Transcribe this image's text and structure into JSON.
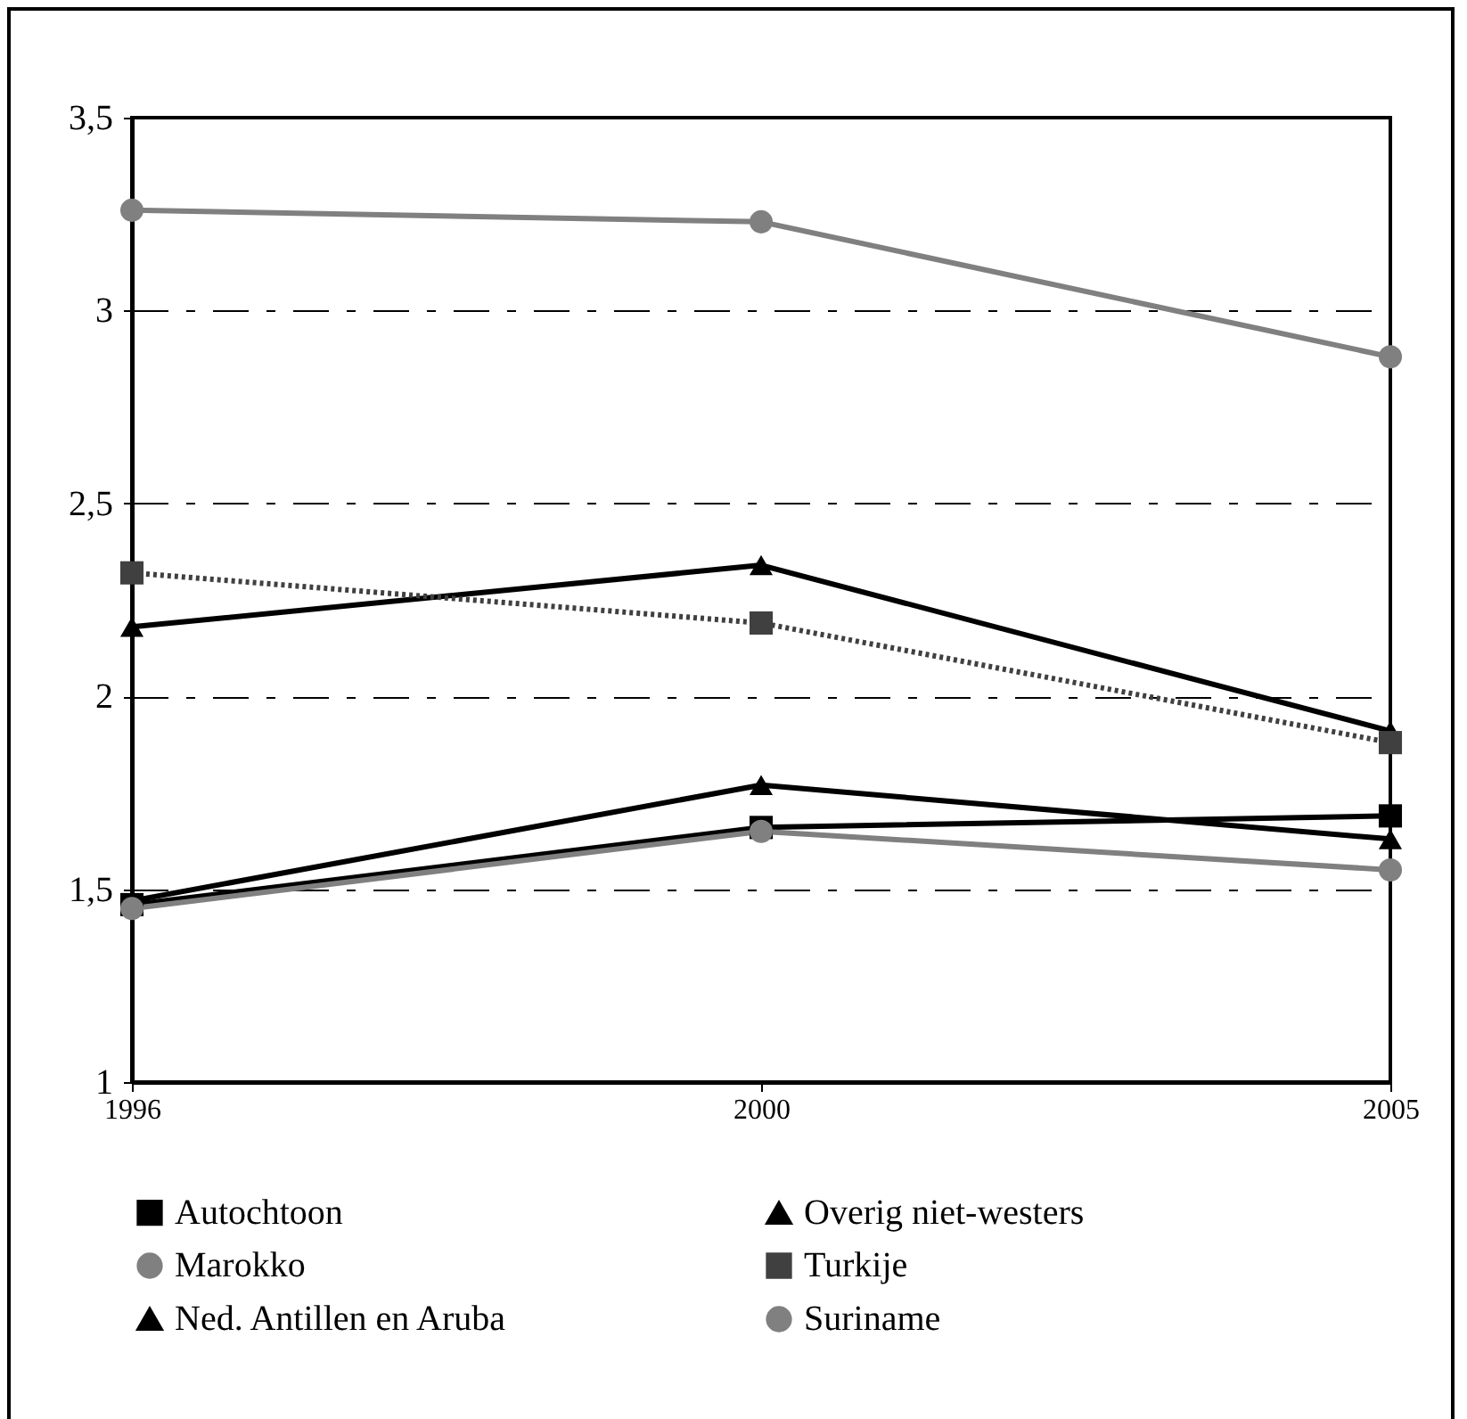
{
  "chart_data": {
    "type": "line",
    "categories": [
      "1996",
      "2000",
      "2005"
    ],
    "ylim": [
      1,
      3.5
    ],
    "yticks": [
      1,
      {
        "value": 1.5,
        "label": "1,5"
      },
      2,
      {
        "value": 2.5,
        "label": "2,5"
      },
      3,
      {
        "value": 3.5,
        "label": "3,5"
      }
    ],
    "grid": "y",
    "legend": "bottom",
    "series": [
      {
        "name": "Autochtoon",
        "color": "#000000",
        "values": [
          1.46,
          1.66,
          1.69
        ],
        "marker": "square",
        "line_style": "solid"
      },
      {
        "name": "Overig niet-westers",
        "color": "#000000",
        "values": [
          2.18,
          2.34,
          1.91
        ],
        "marker": "triangle",
        "line_style": "solid"
      },
      {
        "name": "Marokko",
        "color": "#808080",
        "values": [
          3.26,
          3.23,
          2.88
        ],
        "marker": "circle",
        "line_style": "solid"
      },
      {
        "name": "Turkije",
        "color": "#404040",
        "values": [
          2.32,
          2.19,
          1.88
        ],
        "marker": "square",
        "line_style": "dotted"
      },
      {
        "name": "Ned. Antillen en Aruba",
        "color": "#000000",
        "values": [
          1.47,
          1.77,
          1.63
        ],
        "marker": "triangle",
        "line_style": "solid"
      },
      {
        "name": "Suriname",
        "color": "#808080",
        "values": [
          1.45,
          1.65,
          1.55
        ],
        "marker": "circle",
        "line_style": "solid"
      }
    ]
  }
}
